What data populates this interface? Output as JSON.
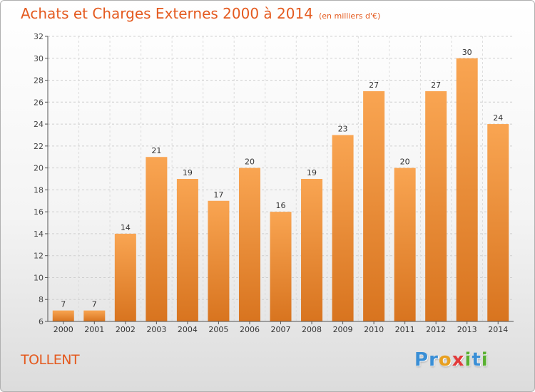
{
  "header": {
    "title": "Achats et Charges Externes 2000 à 2014",
    "unit": "(en milliers d'€)"
  },
  "footer": {
    "town": "TOLLENT",
    "logo_letters": [
      {
        "char": "P",
        "color": "#3a8fd6"
      },
      {
        "char": "r",
        "color": "#3a8fd6"
      },
      {
        "char": "o",
        "color": "#e8a020"
      },
      {
        "char": "x",
        "color": "#e23a3a"
      },
      {
        "char": "i",
        "color": "#58b030"
      },
      {
        "char": "t",
        "color": "#3a8fd6"
      },
      {
        "char": "i",
        "color": "#58b030"
      }
    ]
  },
  "colors": {
    "bar_top": "#f9a552",
    "bar_bottom": "#d8741f",
    "accent": "#e45a1f"
  },
  "chart_data": {
    "type": "bar",
    "categories": [
      "2000",
      "2001",
      "2002",
      "2003",
      "2004",
      "2005",
      "2006",
      "2007",
      "2008",
      "2009",
      "2010",
      "2011",
      "2012",
      "2013",
      "2014"
    ],
    "values": [
      7,
      7,
      14,
      21,
      19,
      17,
      20,
      16,
      19,
      23,
      27,
      20,
      27,
      30,
      24
    ],
    "title": "Achats et Charges Externes 2000 à 2014",
    "xlabel": "",
    "ylabel": "",
    "ylim": [
      6,
      32
    ],
    "yticks": [
      6,
      8,
      10,
      12,
      14,
      16,
      18,
      20,
      22,
      24,
      26,
      28,
      30,
      32
    ],
    "grid": true,
    "data_labels": true
  }
}
